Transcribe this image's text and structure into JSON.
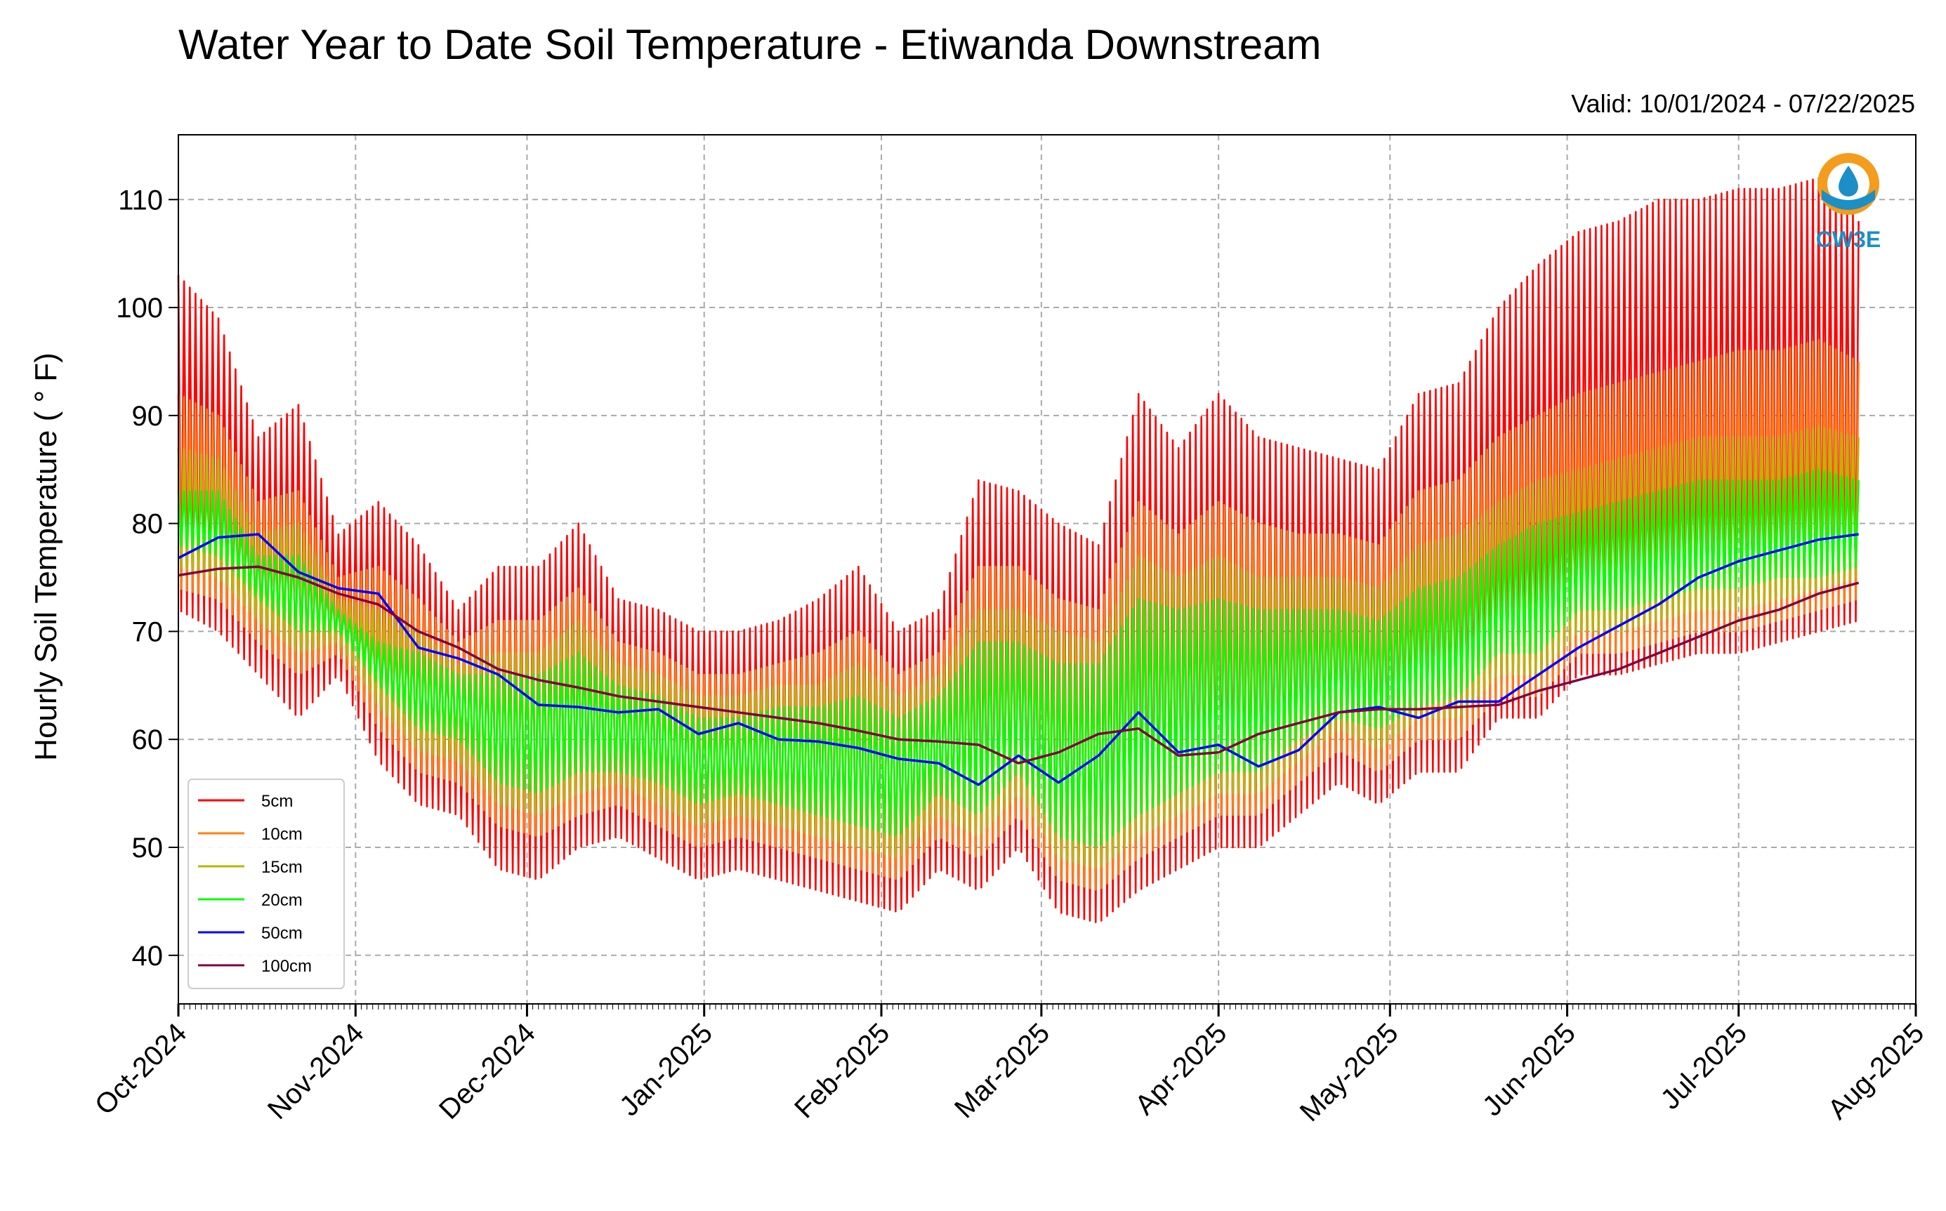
{
  "chart_data": {
    "type": "line",
    "title": "Water Year to Date Soil Temperature - Etiwanda Downstream",
    "subtitle": "Valid: 10/01/2024 - 07/22/2025",
    "ylabel": "Hourly Soil Temperature ( ° F)",
    "xlabel": "",
    "ylim": [
      35.5,
      116
    ],
    "y_ticks": [
      40,
      50,
      60,
      70,
      80,
      90,
      100,
      110
    ],
    "x_range": [
      "2024-10-01",
      "2025-08-01"
    ],
    "x_ticks": [
      {
        "date": "2024-10-01",
        "label": "Oct-2024"
      },
      {
        "date": "2024-11-01",
        "label": "Nov-2024"
      },
      {
        "date": "2024-12-01",
        "label": "Dec-2024"
      },
      {
        "date": "2025-01-01",
        "label": "Jan-2025"
      },
      {
        "date": "2025-02-01",
        "label": "Feb-2025"
      },
      {
        "date": "2025-03-01",
        "label": "Mar-2025"
      },
      {
        "date": "2025-04-01",
        "label": "Apr-2025"
      },
      {
        "date": "2025-05-01",
        "label": "May-2025"
      },
      {
        "date": "2025-06-01",
        "label": "Jun-2025"
      },
      {
        "date": "2025-07-01",
        "label": "Jul-2025"
      },
      {
        "date": "2025-08-01",
        "label": "Aug-2025"
      }
    ],
    "grid": true,
    "legend_position": "lower-left",
    "logo_text": "CW3E",
    "dates": [
      "2024-10-01",
      "2024-10-08",
      "2024-10-15",
      "2024-10-22",
      "2024-10-29",
      "2024-11-05",
      "2024-11-12",
      "2024-11-19",
      "2024-11-26",
      "2024-12-03",
      "2024-12-10",
      "2024-12-17",
      "2024-12-24",
      "2024-12-31",
      "2025-01-07",
      "2025-01-14",
      "2025-01-21",
      "2025-01-28",
      "2025-02-04",
      "2025-02-11",
      "2025-02-18",
      "2025-02-25",
      "2025-03-04",
      "2025-03-11",
      "2025-03-18",
      "2025-03-25",
      "2025-04-01",
      "2025-04-08",
      "2025-04-15",
      "2025-04-22",
      "2025-04-29",
      "2025-05-06",
      "2025-05-13",
      "2025-05-20",
      "2025-05-27",
      "2025-06-03",
      "2025-06-10",
      "2025-06-17",
      "2025-06-24",
      "2025-07-01",
      "2025-07-08",
      "2025-07-15",
      "2025-07-22"
    ],
    "series": [
      {
        "name": "5cm",
        "color": "#ff0000",
        "role": "daily_range",
        "min": [
          72,
          70,
          66,
          62,
          66,
          58,
          54,
          53,
          48,
          47,
          50,
          51,
          49,
          47,
          48,
          47,
          46,
          45,
          44,
          48,
          46,
          50,
          44,
          43,
          46,
          48,
          50,
          50,
          53,
          56,
          54,
          57,
          57,
          62,
          62,
          66,
          66,
          67,
          68,
          68,
          69,
          70,
          71
        ],
        "max": [
          103,
          99,
          88,
          91,
          79,
          82,
          78,
          72,
          76,
          76,
          80,
          73,
          72,
          70,
          70,
          71,
          73,
          76,
          70,
          72,
          84,
          83,
          80,
          78,
          92,
          87,
          92,
          88,
          87,
          86,
          85,
          92,
          93,
          100,
          104,
          107,
          108,
          110,
          110,
          111,
          111,
          112,
          108
        ]
      },
      {
        "name": "10cm",
        "color": "#ff7f0e",
        "role": "daily_range",
        "min": [
          74,
          73,
          69,
          66,
          68,
          61,
          57,
          56,
          52,
          51,
          53,
          54,
          52,
          50,
          51,
          50,
          49,
          48,
          47,
          51,
          49,
          53,
          47,
          46,
          49,
          51,
          53,
          53,
          56,
          59,
          57,
          60,
          60,
          64,
          64,
          68,
          68,
          69,
          70,
          70,
          71,
          72,
          73
        ],
        "max": [
          92,
          90,
          82,
          83,
          75,
          76,
          73,
          69,
          71,
          71,
          74,
          69,
          68,
          66,
          66,
          67,
          68,
          70,
          66,
          68,
          76,
          76,
          73,
          72,
          82,
          79,
          82,
          80,
          79,
          79,
          78,
          83,
          84,
          88,
          90,
          92,
          93,
          94,
          95,
          96,
          96,
          97,
          95
        ]
      },
      {
        "name": "15cm",
        "color": "#b5b800",
        "role": "daily_range",
        "min": [
          76,
          75,
          71,
          68,
          69,
          63,
          59,
          58,
          54,
          53,
          55,
          56,
          54,
          52,
          53,
          52,
          51,
          50,
          49,
          53,
          51,
          55,
          49,
          48,
          51,
          53,
          55,
          55,
          58,
          61,
          59,
          62,
          62,
          66,
          66,
          70,
          70,
          71,
          72,
          72,
          73,
          74,
          75
        ],
        "max": [
          87,
          86,
          79,
          80,
          73,
          72,
          70,
          67,
          68,
          68,
          71,
          67,
          66,
          64,
          64,
          65,
          65,
          67,
          64,
          66,
          72,
          72,
          70,
          69,
          77,
          75,
          77,
          75,
          75,
          75,
          74,
          78,
          79,
          82,
          84,
          85,
          86,
          87,
          88,
          88,
          88,
          89,
          88
        ]
      },
      {
        "name": "20cm",
        "color": "#00ff00",
        "role": "daily_range",
        "min": [
          78,
          77,
          73,
          70,
          70,
          65,
          61,
          60,
          56,
          55,
          57,
          57,
          56,
          54,
          55,
          54,
          53,
          52,
          51,
          55,
          53,
          57,
          51,
          50,
          53,
          55,
          57,
          57,
          60,
          62,
          61,
          63,
          64,
          68,
          68,
          72,
          72,
          73,
          74,
          74,
          75,
          75,
          76
        ],
        "max": [
          83,
          83,
          77,
          77,
          72,
          69,
          68,
          66,
          66,
          66,
          68,
          65,
          64,
          62,
          62,
          63,
          63,
          64,
          62,
          64,
          69,
          69,
          67,
          67,
          73,
          72,
          73,
          72,
          72,
          72,
          71,
          74,
          75,
          78,
          80,
          81,
          82,
          83,
          84,
          84,
          84,
          85,
          84
        ]
      },
      {
        "name": "50cm",
        "color": "#0000ff",
        "role": "line",
        "values": [
          76.8,
          78.7,
          79.0,
          75.5,
          74.0,
          73.5,
          68.5,
          67.5,
          66.0,
          63.2,
          63.0,
          62.5,
          62.8,
          60.5,
          61.5,
          60.0,
          59.8,
          59.2,
          58.2,
          57.8,
          55.8,
          58.5,
          56.0,
          58.5,
          62.5,
          58.8,
          59.5,
          57.5,
          59.0,
          62.5,
          63.0,
          62.0,
          63.5,
          63.5,
          66.0,
          68.5,
          70.5,
          72.5,
          75.0,
          76.5,
          77.5,
          78.5,
          79.0
        ]
      },
      {
        "name": "100cm",
        "color": "#800040",
        "role": "line",
        "values": [
          75.2,
          75.8,
          76.0,
          75.0,
          73.5,
          72.5,
          70.0,
          68.5,
          66.5,
          65.5,
          64.8,
          64.0,
          63.5,
          63.0,
          62.5,
          62.0,
          61.5,
          60.8,
          60.0,
          59.8,
          59.5,
          57.8,
          58.8,
          60.5,
          61.0,
          58.5,
          58.8,
          60.5,
          61.5,
          62.5,
          62.8,
          62.8,
          63.0,
          63.2,
          64.5,
          65.5,
          66.5,
          68.0,
          69.5,
          71.0,
          72.0,
          73.5,
          74.5
        ]
      }
    ]
  }
}
